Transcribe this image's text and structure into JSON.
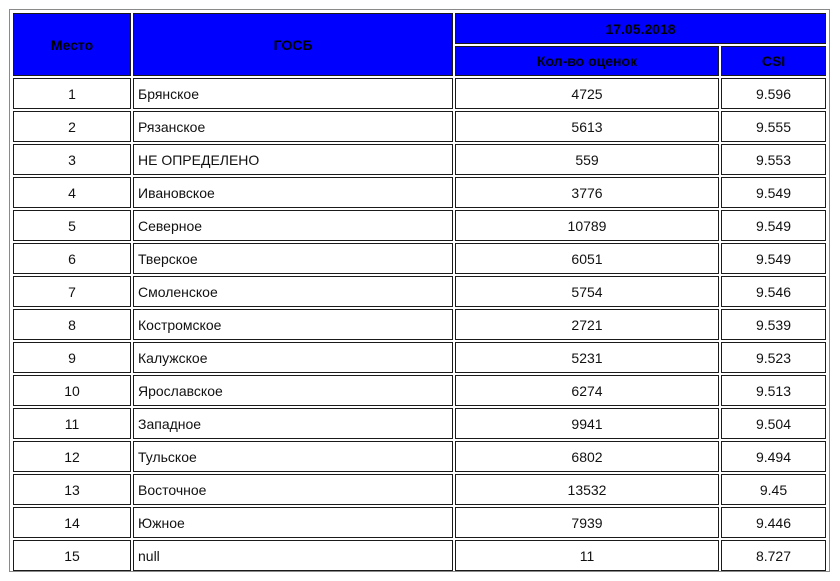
{
  "table": {
    "headers": {
      "place": "Место",
      "gosb": "ГОСБ",
      "date": "17.05.2018",
      "count": "Кол-во оценок",
      "csi": "CSI"
    },
    "rows": [
      {
        "place": "1",
        "gosb": "Брянское",
        "count": "4725",
        "csi": "9.596"
      },
      {
        "place": "2",
        "gosb": "Рязанское",
        "count": "5613",
        "csi": "9.555"
      },
      {
        "place": "3",
        "gosb": "НЕ ОПРЕДЕЛЕНО",
        "count": "559",
        "csi": "9.553"
      },
      {
        "place": "4",
        "gosb": "Ивановское",
        "count": "3776",
        "csi": "9.549"
      },
      {
        "place": "5",
        "gosb": "Северное",
        "count": "10789",
        "csi": "9.549"
      },
      {
        "place": "6",
        "gosb": "Тверское",
        "count": "6051",
        "csi": "9.549"
      },
      {
        "place": "7",
        "gosb": "Смоленское",
        "count": "5754",
        "csi": "9.546"
      },
      {
        "place": "8",
        "gosb": "Костромское",
        "count": "2721",
        "csi": "9.539"
      },
      {
        "place": "9",
        "gosb": "Калужское",
        "count": "5231",
        "csi": "9.523"
      },
      {
        "place": "10",
        "gosb": "Ярославское",
        "count": "6274",
        "csi": "9.513"
      },
      {
        "place": "11",
        "gosb": "Западное",
        "count": "9941",
        "csi": "9.504"
      },
      {
        "place": "12",
        "gosb": "Тульское",
        "count": "6802",
        "csi": "9.494"
      },
      {
        "place": "13",
        "gosb": "Восточное",
        "count": "13532",
        "csi": "9.45"
      },
      {
        "place": "14",
        "gosb": "Южное",
        "count": "7939",
        "csi": "9.446"
      },
      {
        "place": "15",
        "gosb": "null",
        "count": "11",
        "csi": "8.727"
      }
    ]
  },
  "colors": {
    "header_bg": "#0000ff",
    "header_text": "#000000",
    "cell_border": "#1a1a1a"
  }
}
